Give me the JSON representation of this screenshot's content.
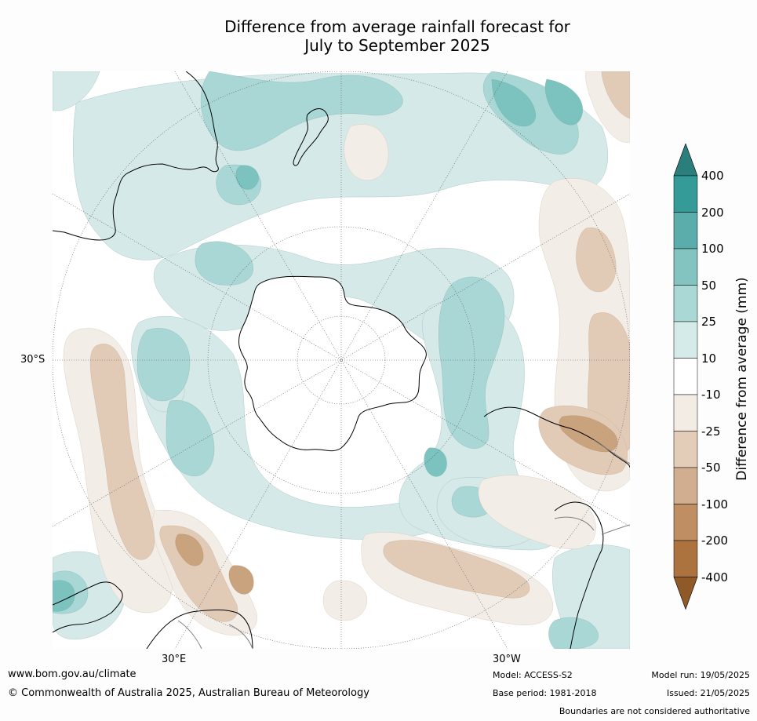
{
  "title": {
    "line1": "Difference from average rainfall forecast for",
    "line2": "July to September 2025"
  },
  "map": {
    "projection": "south-polar-stereographic",
    "lat_label": "30°S",
    "lon_labels": [
      "30°E",
      "30°W"
    ],
    "colors": {
      "wet_light": "#d4e9e8",
      "wet_mid": "#a9d7d5",
      "wet_strong": "#7cc2be",
      "dry_light": "#f2ede7",
      "dry_mid": "#e2cbb6",
      "dry_strong": "#c9a27e",
      "coast": "#000000",
      "border": "#808080"
    }
  },
  "colorbar": {
    "label": "Difference from average (mm)",
    "ticks": [
      "400",
      "200",
      "100",
      "50",
      "25",
      "10",
      "-10",
      "-25",
      "-50",
      "-100",
      "-200",
      "-400"
    ],
    "colors": [
      "#2a7f7c",
      "#349b98",
      "#5aadab",
      "#83c4c1",
      "#a9d8d5",
      "#d4ebe9",
      "#ffffff",
      "#f3ece4",
      "#e3cdb9",
      "#d0ae8f",
      "#bf8e63",
      "#ad733e",
      "#8f5a27"
    ]
  },
  "footer": {
    "url": "www.bom.gov.au/climate",
    "copyright": "© Commonwealth of Australia 2025, Australian Bureau of Meteorology",
    "model": "Model: ACCESS-S2",
    "base_period": "Base period: 1981-2018",
    "model_run": "Model run: 19/05/2025",
    "issued": "Issued: 21/05/2025",
    "disclaimer": "Boundaries are not considered authoritative"
  }
}
